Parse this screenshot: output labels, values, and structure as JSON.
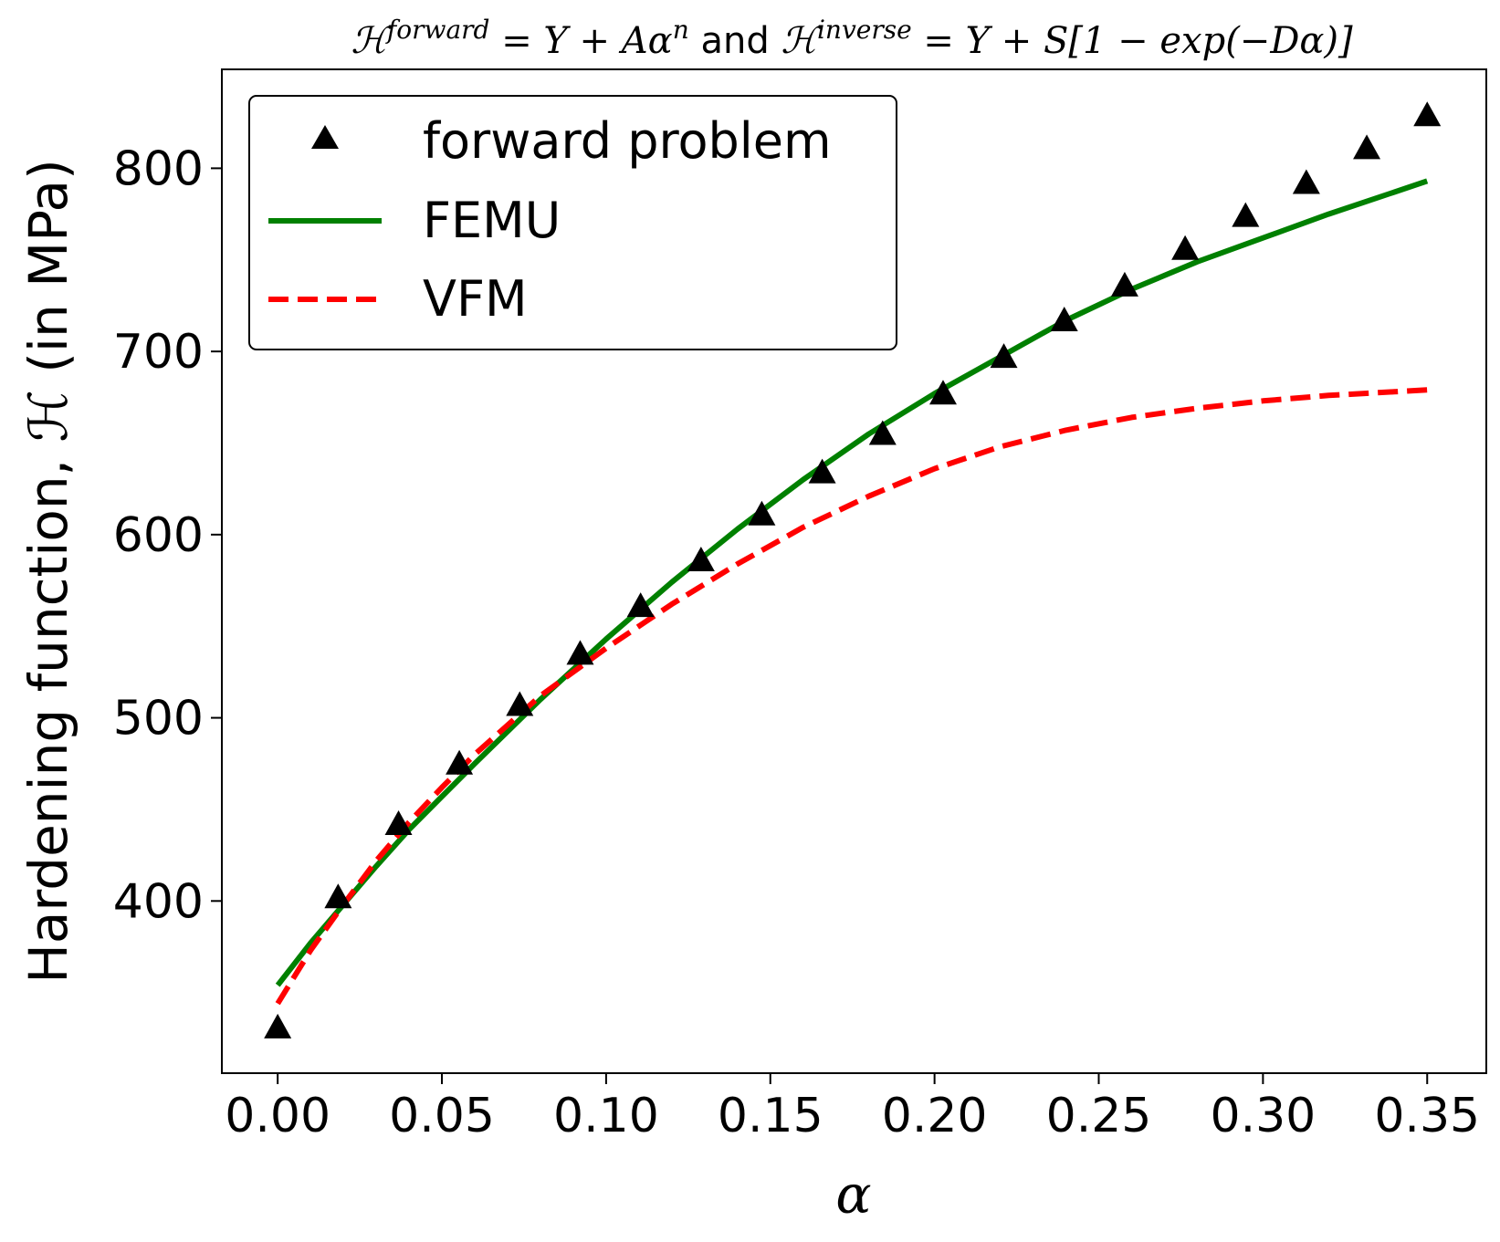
{
  "chart_data": {
    "type": "line",
    "title_parts": {
      "h_forward": "ℋ",
      "sup_forward": "forward",
      "eq_forward": " = Y + Aα",
      "sup_n": "n",
      "and": " and ",
      "h_inverse": "ℋ",
      "sup_inverse": "inverse",
      "eq_inverse": " = Y + S[1 − exp(−Dα)]"
    },
    "xlabel": "α",
    "ylabel": "Hardening function, ℋ (in MPa)",
    "xlim": [
      -0.017,
      0.368
    ],
    "ylim": [
      306,
      854
    ],
    "xticks": [
      0.0,
      0.05,
      0.1,
      0.15,
      0.2,
      0.25,
      0.3,
      0.35
    ],
    "xtick_labels": [
      "0.00",
      "0.05",
      "0.10",
      "0.15",
      "0.20",
      "0.25",
      "0.30",
      "0.35"
    ],
    "yticks": [
      400,
      500,
      600,
      700,
      800
    ],
    "ytick_labels": [
      "400",
      "500",
      "600",
      "700",
      "800"
    ],
    "legend_position": "upper-left",
    "series": [
      {
        "name": "forward problem",
        "style": "markers",
        "marker": "triangle",
        "color": "#000000",
        "x": [
          0.0,
          0.0184,
          0.0368,
          0.0553,
          0.0737,
          0.0921,
          0.1105,
          0.1289,
          0.1474,
          0.1658,
          0.1842,
          0.2026,
          0.2211,
          0.2395,
          0.2579,
          0.2763,
          0.2947,
          0.3132,
          0.3316,
          0.35
        ],
        "y": [
          330,
          401,
          441,
          474,
          506,
          534,
          560,
          585,
          610,
          633,
          654,
          676,
          696,
          716,
          735,
          755,
          773,
          791,
          810,
          828
        ]
      },
      {
        "name": "FEMU",
        "style": "solid",
        "color": "#008000",
        "x": [
          0.0,
          0.01,
          0.02,
          0.03,
          0.04,
          0.05,
          0.06,
          0.08,
          0.1,
          0.12,
          0.14,
          0.16,
          0.18,
          0.2,
          0.22,
          0.24,
          0.26,
          0.28,
          0.3,
          0.32,
          0.34,
          0.35
        ],
        "y": [
          354,
          377,
          398,
          419,
          439,
          457,
          475,
          510,
          543,
          574,
          603,
          630,
          655,
          677,
          697,
          717,
          734,
          749,
          762,
          775,
          787,
          793
        ]
      },
      {
        "name": "VFM",
        "style": "dashed",
        "color": "#ff0000",
        "x": [
          0.0,
          0.01,
          0.02,
          0.03,
          0.04,
          0.05,
          0.06,
          0.08,
          0.1,
          0.12,
          0.14,
          0.16,
          0.18,
          0.2,
          0.22,
          0.24,
          0.26,
          0.28,
          0.3,
          0.32,
          0.34,
          0.35
        ],
        "y": [
          344,
          373,
          398,
          422,
          443,
          462,
          480,
          512,
          538,
          562,
          584,
          604,
          621,
          636,
          648,
          657,
          664,
          669,
          673,
          676,
          678,
          679
        ]
      }
    ]
  }
}
